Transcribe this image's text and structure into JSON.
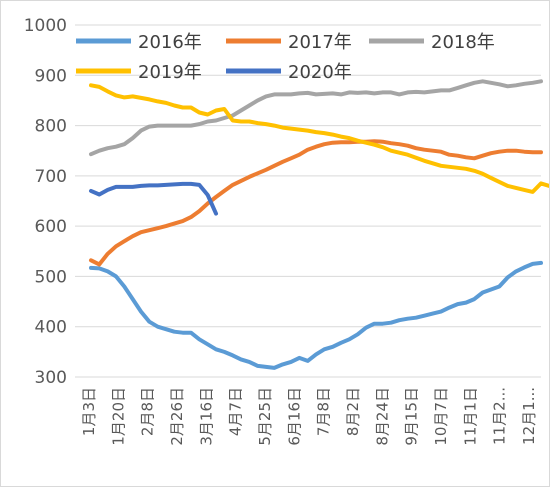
{
  "chart_data": {
    "type": "line",
    "title": "",
    "xlabel": "",
    "ylabel": "",
    "ylim": [
      300,
      1000
    ],
    "yticks": [
      300,
      400,
      500,
      600,
      700,
      800,
      900,
      1000
    ],
    "x_tick_labels": [
      "1月3日",
      "1月20日",
      "2月8日",
      "2月26日",
      "3月16日",
      "4月7日",
      "5月25日",
      "6月16日",
      "7月8日",
      "8月2日",
      "8月24日",
      "9月15日",
      "10月7日",
      "11月1日",
      "11月2...",
      "12月1..."
    ],
    "grid": true,
    "legend_position": "top",
    "series": [
      {
        "name": "2016年",
        "color": "#5b9bd5",
        "values": [
          517,
          516,
          510,
          500,
          480,
          455,
          430,
          410,
          400,
          395,
          390,
          388,
          388,
          375,
          365,
          355,
          350,
          343,
          335,
          330,
          322,
          320,
          318,
          325,
          330,
          338,
          332,
          345,
          355,
          360,
          368,
          375,
          385,
          398,
          406,
          406,
          408,
          413,
          416,
          418,
          422,
          426,
          430,
          438,
          445,
          448,
          455,
          468,
          474,
          480,
          498,
          510,
          518,
          525,
          527
        ]
      },
      {
        "name": "2017年",
        "color": "#ed7d31",
        "values": [
          532,
          524,
          545,
          560,
          570,
          580,
          588,
          592,
          596,
          600,
          605,
          610,
          618,
          630,
          645,
          658,
          670,
          682,
          690,
          698,
          705,
          712,
          720,
          728,
          735,
          742,
          752,
          758,
          763,
          766,
          767,
          767,
          768,
          768,
          769,
          768,
          765,
          763,
          760,
          755,
          752,
          750,
          748,
          742,
          740,
          737,
          735,
          740,
          745,
          748,
          750,
          750,
          748,
          747,
          747
        ]
      },
      {
        "name": "2018年",
        "color": "#a5a5a5",
        "values": [
          743,
          750,
          755,
          758,
          763,
          775,
          790,
          798,
          800,
          800,
          800,
          800,
          800,
          803,
          808,
          810,
          815,
          820,
          830,
          840,
          850,
          858,
          862,
          862,
          862,
          864,
          865,
          862,
          863,
          864,
          862,
          866,
          865,
          866,
          864,
          866,
          866,
          862,
          866,
          867,
          866,
          868,
          870,
          870,
          875,
          880,
          885,
          888,
          885,
          882,
          878,
          880,
          883,
          885,
          888
        ]
      },
      {
        "name": "2019年",
        "color": "#ffc000",
        "values": [
          880,
          877,
          868,
          860,
          856,
          858,
          855,
          852,
          848,
          845,
          840,
          836,
          836,
          826,
          822,
          830,
          833,
          810,
          808,
          808,
          805,
          803,
          800,
          796,
          794,
          792,
          790,
          787,
          785,
          782,
          778,
          775,
          770,
          766,
          762,
          757,
          750,
          746,
          742,
          736,
          730,
          725,
          720,
          718,
          716,
          714,
          710,
          704,
          696,
          688,
          680,
          676,
          672,
          668,
          685,
          680
        ]
      },
      {
        "name": "2020年",
        "color": "#4472c4",
        "values": [
          670,
          663,
          672,
          678,
          678,
          678,
          680,
          681,
          681,
          682,
          683,
          684,
          684,
          682,
          662,
          625
        ]
      }
    ]
  }
}
